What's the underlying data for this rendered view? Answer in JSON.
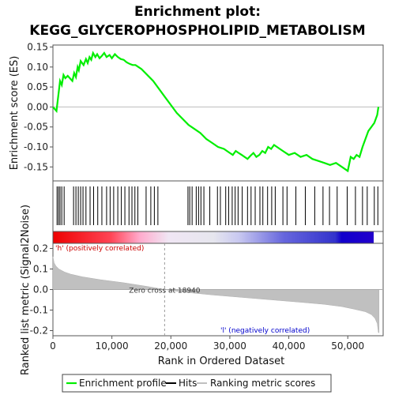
{
  "title_line1": "Enrichment plot:",
  "title_line2": "KEGG_GLYCEROPHOSPHOLIPID_METABOLISM",
  "colors": {
    "enrichment": "#00ee00",
    "hits": "#000000",
    "metric_fill": "#c0c0c0",
    "pos_label": "#cc0000",
    "neg_label": "#0000cc",
    "zero_line": "#aaaaaa",
    "frame": "#555555"
  },
  "chart_data": {
    "type": "line",
    "x_range": [
      0,
      56000
    ],
    "es_panel": {
      "ylabel": "Enrichment score (ES)",
      "ylim": [
        -0.185,
        0.155
      ],
      "yticks": [
        -0.15,
        -0.1,
        -0.05,
        0.0,
        0.05,
        0.1,
        0.15
      ],
      "ytick_labels": [
        "-0.15",
        "-0.10",
        "-0.05",
        "0.00",
        "0.05",
        "0.10",
        "0.15"
      ],
      "series": [
        {
          "name": "Enrichment profile",
          "x": [
            0,
            600,
            800,
            1000,
            1200,
            1500,
            1800,
            2100,
            2500,
            3300,
            3600,
            3900,
            4200,
            4400,
            4700,
            5200,
            5600,
            5900,
            6200,
            6500,
            6800,
            7200,
            7500,
            7900,
            8300,
            8700,
            9100,
            9600,
            10000,
            10500,
            11000,
            11500,
            12000,
            12500,
            13000,
            13500,
            14000,
            14500,
            15000,
            17000,
            19000,
            21000,
            23000,
            24000,
            25000,
            26000,
            27000,
            28000,
            29000,
            30000,
            30500,
            31000,
            31500,
            32000,
            33000,
            33500,
            34000,
            34500,
            35000,
            35500,
            36000,
            36500,
            37000,
            37500,
            38000,
            39000,
            40000,
            41000,
            42000,
            43000,
            44000,
            45000,
            46000,
            47000,
            48000,
            49000,
            50000,
            50500,
            51000,
            51500,
            52000,
            52500,
            53000,
            53500,
            54000,
            54500,
            55000,
            55200
          ],
          "y": [
            0.0,
            -0.01,
            0.015,
            0.04,
            0.065,
            0.055,
            0.08,
            0.072,
            0.078,
            0.065,
            0.085,
            0.075,
            0.1,
            0.092,
            0.115,
            0.105,
            0.12,
            0.11,
            0.125,
            0.118,
            0.135,
            0.125,
            0.132,
            0.122,
            0.128,
            0.135,
            0.125,
            0.13,
            0.122,
            0.132,
            0.125,
            0.12,
            0.118,
            0.112,
            0.108,
            0.105,
            0.105,
            0.1,
            0.095,
            0.065,
            0.025,
            -0.015,
            -0.045,
            -0.055,
            -0.065,
            -0.08,
            -0.09,
            -0.1,
            -0.105,
            -0.115,
            -0.12,
            -0.11,
            -0.115,
            -0.12,
            -0.13,
            -0.122,
            -0.115,
            -0.125,
            -0.12,
            -0.11,
            -0.115,
            -0.1,
            -0.105,
            -0.095,
            -0.1,
            -0.11,
            -0.12,
            -0.115,
            -0.125,
            -0.12,
            -0.13,
            -0.135,
            -0.14,
            -0.145,
            -0.14,
            -0.15,
            -0.16,
            -0.125,
            -0.13,
            -0.12,
            -0.125,
            -0.1,
            -0.08,
            -0.06,
            -0.05,
            -0.04,
            -0.02,
            0.0
          ]
        }
      ],
      "hits": [
        700,
        950,
        1200,
        1500,
        1900,
        3500,
        3900,
        4300,
        4700,
        5100,
        5600,
        6300,
        6900,
        7600,
        8300,
        9100,
        9700,
        10300,
        11000,
        11600,
        12200,
        12900,
        13400,
        13900,
        14400,
        15800,
        16600,
        17200,
        17800,
        22900,
        23200,
        23600,
        24300,
        24700,
        25100,
        25600,
        26600,
        27900,
        28400,
        29300,
        29800,
        30400,
        30900,
        31400,
        32100,
        33000,
        33600,
        34300,
        35100,
        35600,
        36400,
        37100,
        37700,
        39000,
        39700,
        41200,
        42800,
        44400,
        45800,
        46900,
        48200,
        49900,
        51300,
        52500,
        53300,
        54500,
        55100
      ]
    },
    "metric_panel": {
      "ylabel": "Ranked list metric (Signal2Noise)",
      "ylim": [
        -0.225,
        0.225
      ],
      "yticks": [
        -0.2,
        -0.1,
        0.0,
        0.1,
        0.2
      ],
      "ytick_labels": [
        "-0.2",
        "-0.1",
        "0.0",
        "0.1",
        "0.2"
      ],
      "xlabel": "Rank in Ordered Dataset",
      "xticks": [
        0,
        10000,
        20000,
        30000,
        40000,
        50000
      ],
      "xtick_labels": [
        "0",
        "10,000",
        "20,000",
        "30,000",
        "40,000",
        "50,000"
      ],
      "profile_x": [
        0,
        200,
        500,
        1000,
        2000,
        3000,
        5000,
        8000,
        12000,
        16000,
        18940,
        22000,
        27000,
        32000,
        37000,
        42000,
        46000,
        49000,
        51000,
        53000,
        54000,
        54600,
        55000,
        55200,
        55300
      ],
      "profile_y": [
        0.16,
        0.13,
        0.115,
        0.1,
        0.085,
        0.075,
        0.062,
        0.048,
        0.033,
        0.015,
        0.0,
        -0.012,
        -0.026,
        -0.038,
        -0.05,
        -0.062,
        -0.072,
        -0.083,
        -0.095,
        -0.108,
        -0.122,
        -0.14,
        -0.165,
        -0.21,
        -0.21
      ],
      "zero_cross_label": "Zero cross at 18940",
      "zero_cross_x": 18940,
      "pos_label": "'h' (positively correlated)",
      "neg_label": "'l' (negatively correlated)"
    },
    "legend": {
      "placement": "bottom",
      "items": [
        {
          "label": "Enrichment profile",
          "key": "enrichment"
        },
        {
          "label": "Hits",
          "key": "hits"
        },
        {
          "label": "Ranking metric scores",
          "key": "metric"
        }
      ]
    }
  }
}
